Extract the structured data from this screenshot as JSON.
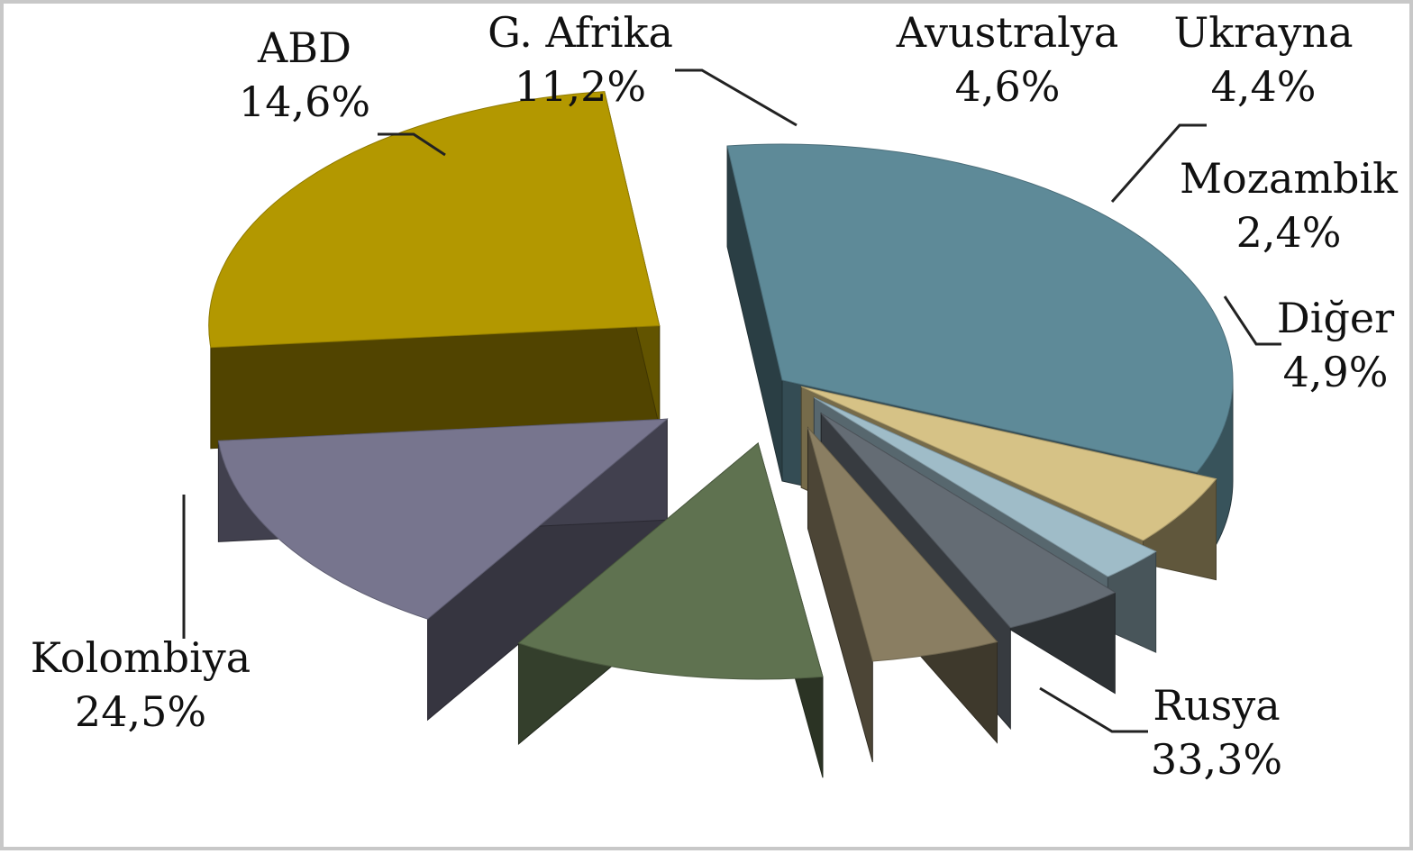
{
  "chart_data": {
    "type": "pie",
    "title": "",
    "unit": "%",
    "exploded": true,
    "three_d": true,
    "legend": "none",
    "slices": [
      {
        "name": "Rusya",
        "value": 33.3,
        "label": "33,3%",
        "color": "#5e8a98"
      },
      {
        "name": "Kolombiya",
        "value": 24.5,
        "label": "24,5%",
        "color": "#b39800"
      },
      {
        "name": "ABD",
        "value": 14.6,
        "label": "14,6%",
        "color": "#77758e"
      },
      {
        "name": "G. Afrika",
        "value": 11.2,
        "label": "11,2%",
        "color": "#5f7250"
      },
      {
        "name": "Avustralya",
        "value": 4.6,
        "label": "4,6%",
        "color": "#8a7e62"
      },
      {
        "name": "Ukrayna",
        "value": 4.4,
        "label": "4,4%",
        "color": "#646c74"
      },
      {
        "name": "Mozambik",
        "value": 2.4,
        "label": "2,4%",
        "color": "#9fbcc8"
      },
      {
        "name": "Diğer",
        "value": 4.9,
        "label": "4,9%",
        "color": "#d6c286"
      }
    ]
  }
}
